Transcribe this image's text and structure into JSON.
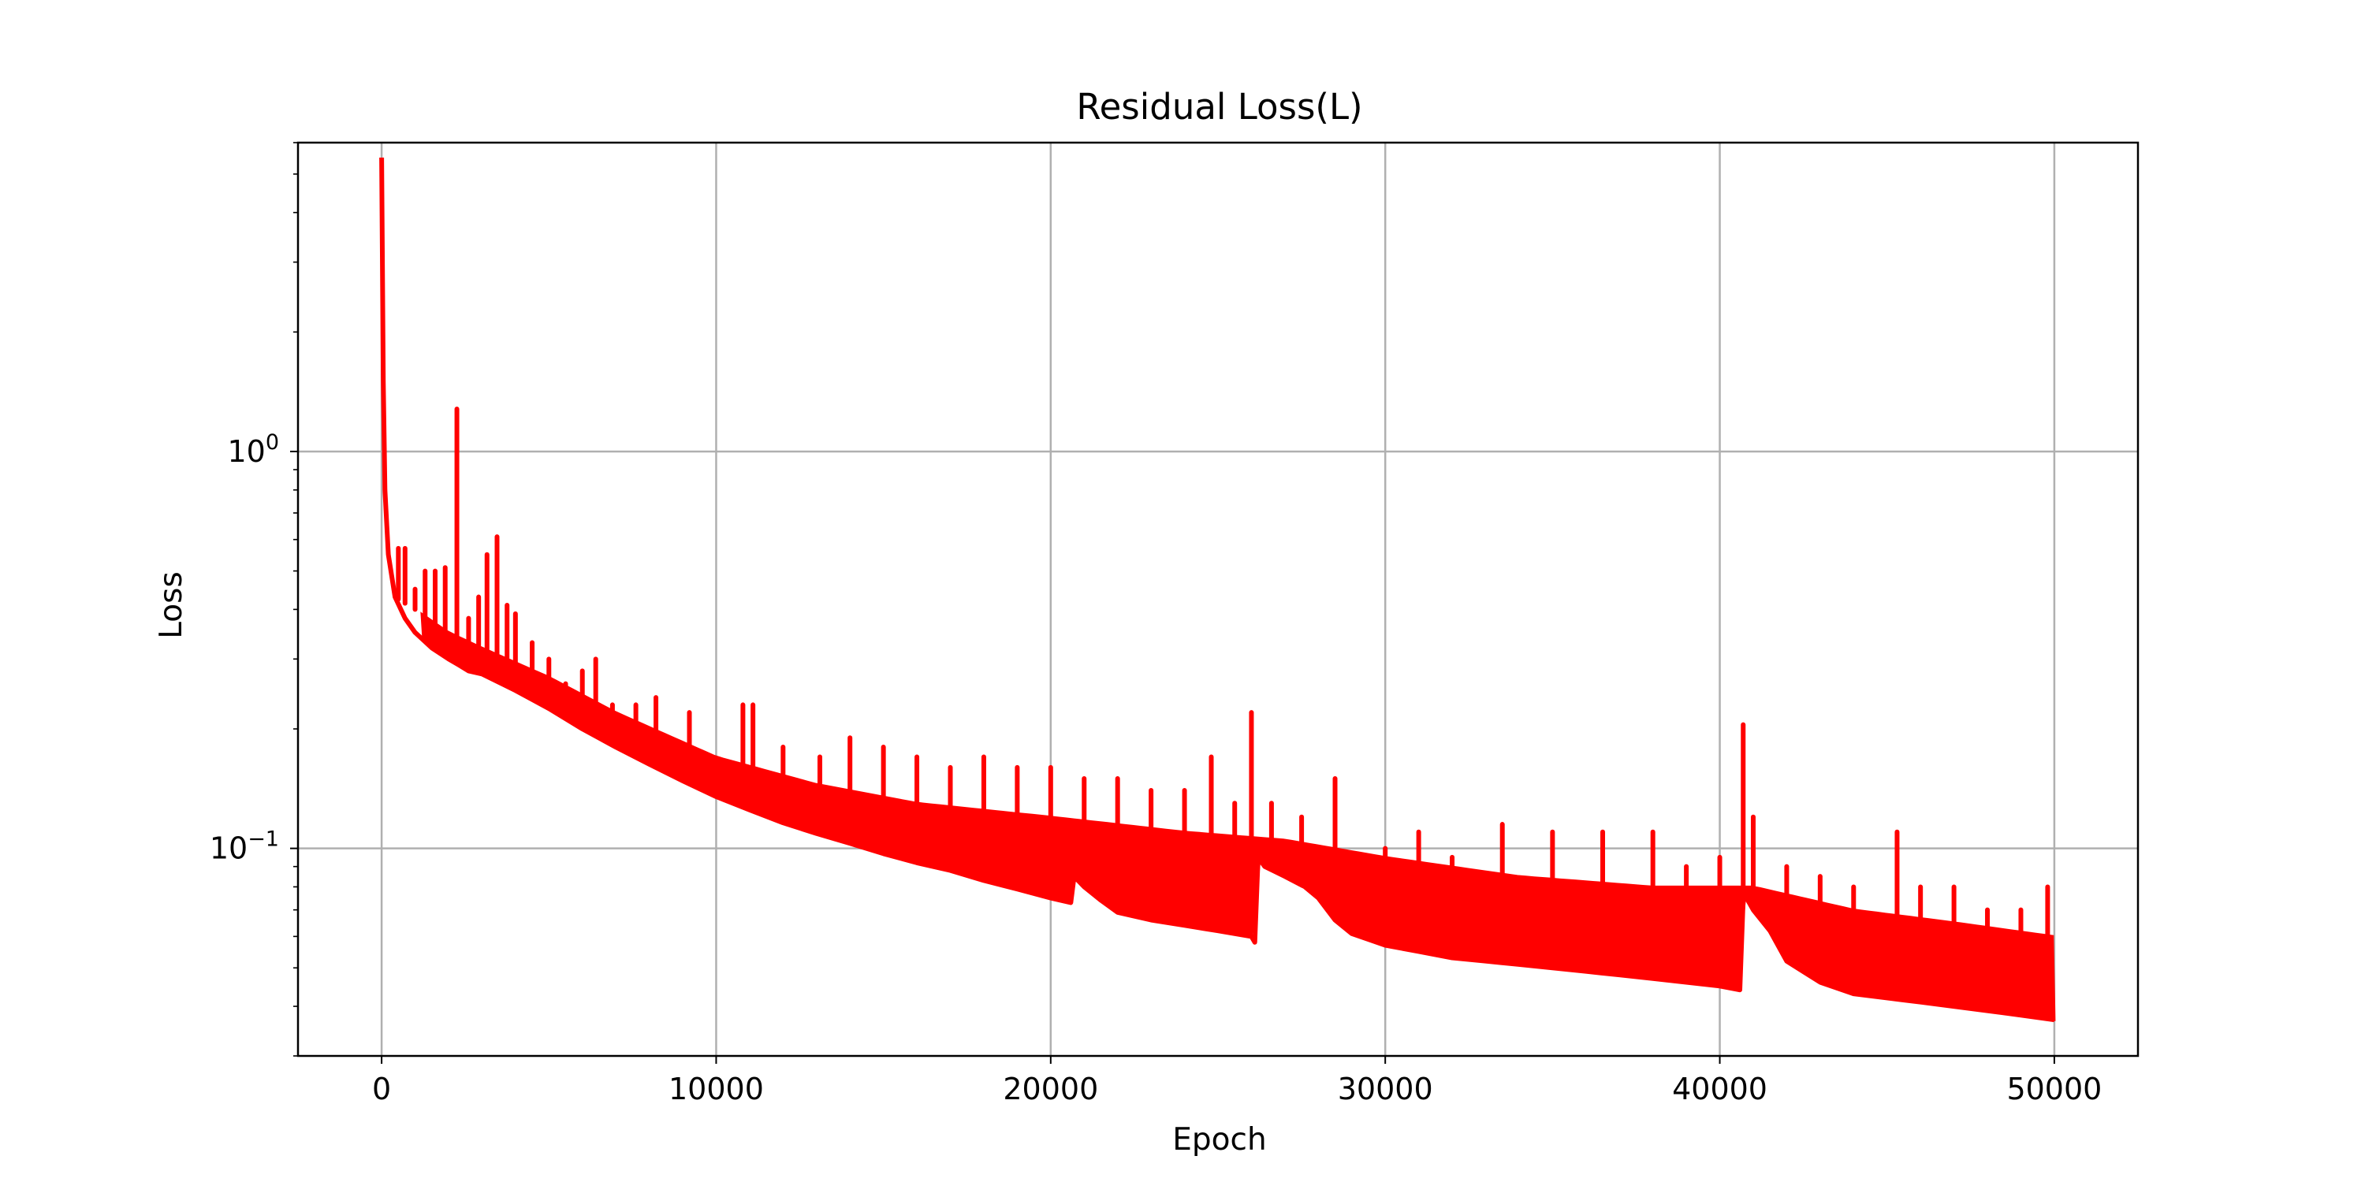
{
  "chart_data": {
    "type": "line",
    "title": "Residual Loss(L)",
    "xlabel": "Epoch",
    "ylabel": "Loss",
    "xlim": [
      -2500,
      52500
    ],
    "ylim": [
      0.03,
      6.0
    ],
    "yscale": "log",
    "grid": true,
    "x_ticks": [
      0,
      10000,
      20000,
      30000,
      40000,
      50000
    ],
    "x_tick_labels": [
      "0",
      "10000",
      "20000",
      "30000",
      "40000",
      "50000"
    ],
    "y_ticks": [
      {
        "value": 1,
        "base": "10",
        "exp": "0"
      },
      {
        "value": 0.1,
        "base": "10",
        "exp": "−1"
      }
    ],
    "series": [
      {
        "color": "#ff0000",
        "floor": {
          "x": [
            0,
            50,
            100,
            200,
            400,
            700,
            1000,
            1500,
            2000,
            2300,
            2600,
            3000,
            4000,
            5000,
            6000,
            7000,
            8000,
            9000,
            10000,
            11000,
            12000,
            13000,
            14000,
            15000,
            16000,
            17000,
            18000,
            19000,
            20000,
            20600,
            20700,
            21000,
            21500,
            22000,
            23000,
            24000,
            25000,
            26000,
            26100,
            26200,
            26400,
            27000,
            27600,
            28000,
            28500,
            29000,
            29500,
            30000,
            31000,
            32000,
            33000,
            34000,
            35000,
            36000,
            37000,
            38000,
            39000,
            40000,
            40600,
            40700,
            40800,
            41000,
            41500,
            42000,
            43000,
            44000,
            45000,
            46000,
            47000,
            48000,
            49000,
            50000
          ],
          "y": [
            5.5,
            1.5,
            0.8,
            0.55,
            0.43,
            0.38,
            0.35,
            0.32,
            0.3,
            0.29,
            0.28,
            0.275,
            0.25,
            0.225,
            0.2,
            0.18,
            0.163,
            0.148,
            0.135,
            0.125,
            0.116,
            0.109,
            0.103,
            0.097,
            0.092,
            0.088,
            0.083,
            0.079,
            0.075,
            0.073,
            0.085,
            0.08,
            0.074,
            0.069,
            0.066,
            0.064,
            0.062,
            0.06,
            0.058,
            0.095,
            0.09,
            0.085,
            0.08,
            0.075,
            0.066,
            0.061,
            0.059,
            0.057,
            0.055,
            0.053,
            0.052,
            0.051,
            0.05,
            0.049,
            0.048,
            0.047,
            0.046,
            0.045,
            0.044,
            0.075,
            0.075,
            0.07,
            0.062,
            0.052,
            0.046,
            0.043,
            0.042,
            0.041,
            0.04,
            0.039,
            0.038,
            0.037
          ]
        },
        "band_top": {
          "x": [
            0,
            1000,
            2000,
            3000,
            5000,
            7000,
            10000,
            13000,
            16000,
            20000,
            24000,
            27000,
            30000,
            34000,
            38000,
            41000,
            44000,
            47000,
            50000
          ],
          "y": [
            0.45,
            0.4,
            0.35,
            0.32,
            0.27,
            0.22,
            0.17,
            0.145,
            0.13,
            0.12,
            0.11,
            0.105,
            0.095,
            0.085,
            0.08,
            0.08,
            0.07,
            0.065,
            0.06
          ]
        },
        "spikes": {
          "x": [
            500,
            700,
            1000,
            1300,
            1600,
            1900,
            2250,
            2600,
            2900,
            3150,
            3450,
            3750,
            4000,
            4500,
            5000,
            5500,
            6000,
            6400,
            6900,
            7600,
            8200,
            9200,
            10800,
            11100,
            12000,
            13100,
            14000,
            15000,
            16000,
            17000,
            18000,
            19000,
            20000,
            21000,
            22000,
            23000,
            24000,
            24800,
            25500,
            26000,
            26600,
            27500,
            28500,
            30000,
            31000,
            32000,
            33500,
            35000,
            36500,
            38000,
            39000,
            40000,
            40700,
            41000,
            42000,
            43000,
            44000,
            45300,
            46000,
            47000,
            48000,
            49000,
            49800
          ],
          "y": [
            0.57,
            0.57,
            0.45,
            0.5,
            0.5,
            0.51,
            1.28,
            0.38,
            0.43,
            0.55,
            0.61,
            0.41,
            0.39,
            0.33,
            0.3,
            0.26,
            0.28,
            0.3,
            0.23,
            0.23,
            0.24,
            0.22,
            0.23,
            0.23,
            0.18,
            0.17,
            0.19,
            0.18,
            0.17,
            0.16,
            0.17,
            0.16,
            0.16,
            0.15,
            0.15,
            0.14,
            0.14,
            0.17,
            0.13,
            0.22,
            0.13,
            0.12,
            0.15,
            0.1,
            0.11,
            0.095,
            0.115,
            0.11,
            0.11,
            0.11,
            0.09,
            0.095,
            0.205,
            0.12,
            0.09,
            0.085,
            0.08,
            0.11,
            0.08,
            0.08,
            0.07,
            0.07,
            0.08
          ]
        }
      }
    ]
  }
}
